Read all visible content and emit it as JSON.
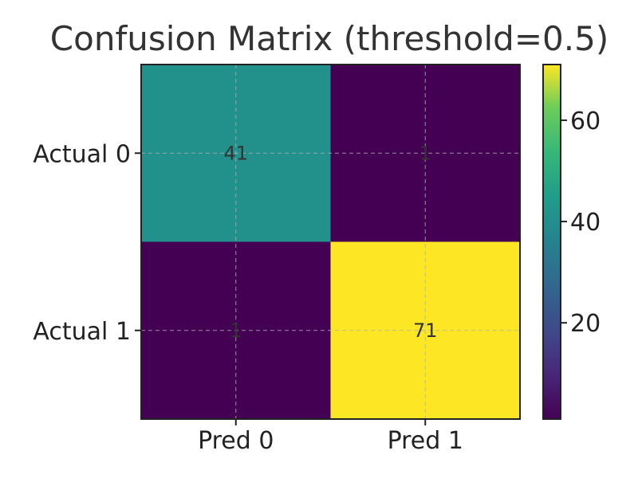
{
  "chart_data": {
    "type": "heatmap",
    "title": "Confusion Matrix (threshold=0.5)",
    "x_labels": [
      "Pred 0",
      "Pred 1"
    ],
    "y_labels": [
      "Actual 0",
      "Actual 1"
    ],
    "matrix": [
      [
        41,
        1
      ],
      [
        1,
        71
      ]
    ],
    "colormap": "viridis",
    "color_range": [
      1,
      71
    ],
    "colorbar_ticks": [
      20,
      40,
      60
    ],
    "grid": true
  }
}
